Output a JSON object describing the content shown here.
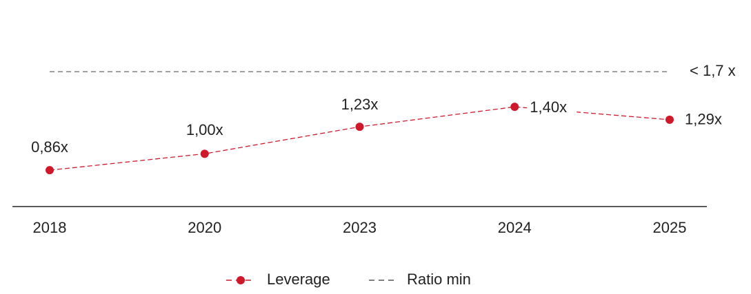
{
  "chart_data": {
    "type": "line",
    "categories": [
      "2018",
      "2020",
      "2023",
      "2024",
      "2025"
    ],
    "series": [
      {
        "name": "Leverage",
        "color": "#d0182b",
        "values": [
          0.86,
          1.0,
          1.23,
          1.4,
          1.29
        ],
        "value_labels": [
          "0,86x",
          "1,00x",
          "1,23x",
          "1,40x",
          "1,29x"
        ]
      }
    ],
    "reference_line": {
      "name": "Ratio min",
      "value": 1.7,
      "label": "< 1,7 x",
      "color": "#555555"
    },
    "ylim": [
      0.55,
      1.9
    ],
    "legend": "bottom"
  }
}
